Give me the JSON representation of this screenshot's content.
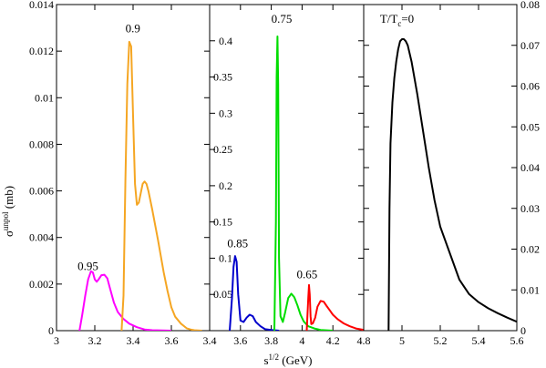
{
  "axes": {
    "ylabel_main": "σ",
    "ylabel_sup": "unpol",
    "ylabel_unit": " (mb)",
    "xlabel_main": "s",
    "xlabel_sup": "1/2",
    "xlabel_unit": " (GeV)"
  },
  "chart_data": [
    {
      "type": "line",
      "panel": "left",
      "xlim": [
        3.0,
        3.8
      ],
      "ylim": [
        0,
        0.014
      ],
      "xticks": [
        3,
        3.2,
        3.4,
        3.6
      ],
      "xtick_labels": [
        "3",
        "3.2",
        "3.4",
        "3.6"
      ],
      "yticks": [
        0,
        0.002,
        0.004,
        0.006,
        0.008,
        0.01,
        0.012,
        0.014
      ],
      "ytick_labels": [
        "0",
        "0.002",
        "0.004",
        "0.006",
        "0.008",
        "0.01",
        "0.012",
        "0.014"
      ],
      "y_axis_side": "left",
      "annotations": [
        {
          "text": "0.9",
          "x": 3.36,
          "y": 0.0128
        },
        {
          "text": "0.95",
          "x": 3.11,
          "y": 0.0026
        }
      ],
      "series": [
        {
          "color": "#ff00ff",
          "x": [
            3.12,
            3.135,
            3.15,
            3.165,
            3.18,
            3.19,
            3.2,
            3.21,
            3.22,
            3.235,
            3.25,
            3.265,
            3.28,
            3.3,
            3.32,
            3.35,
            3.38,
            3.42,
            3.46,
            3.5,
            3.55,
            3.6
          ],
          "y": [
            0,
            0.0007,
            0.0015,
            0.0022,
            0.00255,
            0.0025,
            0.0022,
            0.0021,
            0.0022,
            0.00238,
            0.0024,
            0.00225,
            0.0018,
            0.0012,
            0.0008,
            0.0005,
            0.0003,
            0.00015,
            5e-05,
            2e-05,
            1e-05,
            0
          ]
        },
        {
          "color": "#f5a623",
          "x": [
            3.34,
            3.35,
            3.36,
            3.37,
            3.38,
            3.39,
            3.4,
            3.41,
            3.42,
            3.43,
            3.44,
            3.45,
            3.46,
            3.47,
            3.48,
            3.5,
            3.53,
            3.56,
            3.58,
            3.6,
            3.62,
            3.65,
            3.68,
            3.7,
            3.72,
            3.74,
            3.76
          ],
          "y": [
            0,
            0.0015,
            0.0065,
            0.0106,
            0.0124,
            0.0122,
            0.0092,
            0.0063,
            0.0054,
            0.0055,
            0.0059,
            0.0063,
            0.0064,
            0.0063,
            0.006,
            0.0052,
            0.0039,
            0.0025,
            0.0017,
            0.001,
            0.0006,
            0.0003,
            0.0001,
            5e-05,
            2e-05,
            1e-05,
            0
          ]
        }
      ]
    },
    {
      "type": "line",
      "panel": "middle",
      "xlim": [
        3.4,
        4.4
      ],
      "ylim": [
        0,
        0.45
      ],
      "xticks": [
        3.4,
        3.6,
        3.8,
        4,
        4.2
      ],
      "xtick_labels": [
        "3.4",
        "3.6",
        "3.8",
        "4",
        "4.2"
      ],
      "yticks": [
        0,
        0.05,
        0.1,
        0.15,
        0.2,
        0.25,
        0.3,
        0.35,
        0.4
      ],
      "ytick_labels": [
        "",
        "0.05",
        "0.1",
        "0.15",
        "0.2",
        "0.25",
        "0.3",
        "0.35",
        "0.4"
      ],
      "y_axis_side": "left-inside",
      "annotations": [
        {
          "text": "0.75",
          "x": 3.8,
          "y": 0.425
        },
        {
          "text": "0.85",
          "x": 3.515,
          "y": 0.115
        },
        {
          "text": "0.65",
          "x": 3.965,
          "y": 0.072
        }
      ],
      "series": [
        {
          "color": "#0000cc",
          "x": [
            3.53,
            3.545,
            3.555,
            3.565,
            3.575,
            3.585,
            3.6,
            3.62,
            3.64,
            3.66,
            3.68,
            3.7,
            3.73,
            3.76,
            3.8,
            3.85
          ],
          "y": [
            0,
            0.045,
            0.088,
            0.103,
            0.095,
            0.05,
            0.014,
            0.012,
            0.018,
            0.022,
            0.02,
            0.012,
            0.006,
            0.002,
            0.001,
            0
          ]
        },
        {
          "color": "#00dd00",
          "x": [
            3.82,
            3.83,
            3.835,
            3.84,
            3.845,
            3.85,
            3.86,
            3.875,
            3.89,
            3.91,
            3.93,
            3.95,
            3.97,
            3.99,
            4.01,
            4.04,
            4.08,
            4.12,
            4.16,
            4.2
          ],
          "y": [
            0,
            0.15,
            0.35,
            0.406,
            0.34,
            0.1,
            0.02,
            0.012,
            0.025,
            0.045,
            0.051,
            0.046,
            0.035,
            0.022,
            0.013,
            0.006,
            0.003,
            0.001,
            0.0005,
            0
          ]
        },
        {
          "color": "#ff0000",
          "x": [
            4.03,
            4.04,
            4.045,
            4.05,
            4.055,
            4.06,
            4.07,
            4.085,
            4.1,
            4.12,
            4.14,
            4.16,
            4.18,
            4.2,
            4.23,
            4.27,
            4.31,
            4.35,
            4.4
          ],
          "y": [
            0,
            0.045,
            0.063,
            0.05,
            0.02,
            0.009,
            0.01,
            0.018,
            0.033,
            0.041,
            0.04,
            0.034,
            0.028,
            0.022,
            0.016,
            0.01,
            0.006,
            0.003,
            0.001
          ]
        }
      ]
    },
    {
      "type": "line",
      "panel": "right",
      "xlim": [
        4.8,
        5.6
      ],
      "ylim": [
        0,
        0.08
      ],
      "xticks": [
        4.8,
        5,
        5.2,
        5.4,
        5.6
      ],
      "xtick_labels": [
        "4.8",
        "5",
        "5.2",
        "5.4",
        "5.6"
      ],
      "yticks": [
        0,
        0.01,
        0.02,
        0.03,
        0.04,
        0.05,
        0.06,
        0.07,
        0.08
      ],
      "ytick_labels": [
        "0",
        "0.01",
        "0.02",
        "0.03",
        "0.04",
        "0.05",
        "0.06",
        "0.07",
        "0.08"
      ],
      "y_axis_side": "right",
      "annotations": [
        {
          "text": "T/T",
          "sub": "c",
          "rest": "=0",
          "x": 4.885,
          "y": 0.0755
        }
      ],
      "series": [
        {
          "color": "#000000",
          "x": [
            4.93,
            4.935,
            4.94,
            4.95,
            4.96,
            4.97,
            4.98,
            4.99,
            5.0,
            5.01,
            5.02,
            5.03,
            5.05,
            5.08,
            5.11,
            5.14,
            5.17,
            5.2,
            5.25,
            5.3,
            5.35,
            5.4,
            5.45,
            5.5,
            5.55,
            5.6
          ],
          "y": [
            0,
            0.03,
            0.046,
            0.056,
            0.062,
            0.066,
            0.069,
            0.071,
            0.0715,
            0.0715,
            0.071,
            0.07,
            0.066,
            0.058,
            0.049,
            0.04,
            0.032,
            0.0255,
            0.019,
            0.0125,
            0.009,
            0.007,
            0.0055,
            0.0043,
            0.0032,
            0.0022
          ]
        }
      ]
    }
  ]
}
